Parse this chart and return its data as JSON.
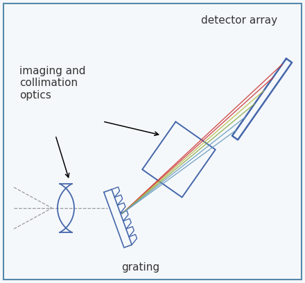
{
  "bg_color": "#f5f8fb",
  "border_color": "#5588aa",
  "text_color": "#333333",
  "blue_color": "#4466aa",
  "red_color": "#cc3333",
  "yellow_color": "#bbbb44",
  "green_color": "#88aa44",
  "cyan_color": "#6699bb",
  "gray_color": "#999999",
  "labels": {
    "detector": "detector array",
    "optics": "imaging and\ncollimation\noptics",
    "grating": "grating"
  },
  "figsize": [
    4.4,
    4.08
  ],
  "dpi": 100
}
